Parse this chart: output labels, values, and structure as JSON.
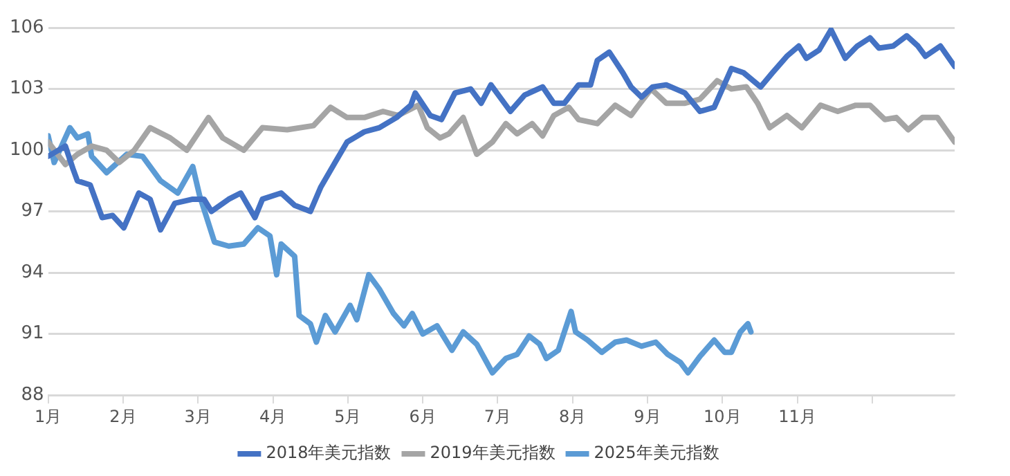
{
  "chart_data": {
    "type": "line",
    "xlim": [
      1,
      13.1
    ],
    "xticks": [
      {
        "value": 1,
        "label": "1月"
      },
      {
        "value": 2,
        "label": "2月"
      },
      {
        "value": 3,
        "label": "3月"
      },
      {
        "value": 4,
        "label": "4月"
      },
      {
        "value": 5,
        "label": "5月"
      },
      {
        "value": 6,
        "label": "6月"
      },
      {
        "value": 7,
        "label": "7月"
      },
      {
        "value": 8,
        "label": "8月"
      },
      {
        "value": 9,
        "label": "9月"
      },
      {
        "value": 10,
        "label": "10月"
      },
      {
        "value": 11,
        "label": "11月"
      },
      {
        "value": 12,
        "label": null
      }
    ],
    "ylim": [
      88,
      106
    ],
    "yticks": [
      88,
      91,
      94,
      97,
      100,
      103,
      106
    ],
    "grid": "y",
    "legend": "bottom",
    "marker": "none",
    "line_style": "solid",
    "series": [
      {
        "name": "2018年美元指数",
        "color": "#4472c4",
        "x": [
          1.0,
          1.23,
          1.33,
          1.39,
          1.56,
          1.72,
          1.86,
          2.01,
          2.21,
          2.36,
          2.5,
          2.69,
          2.93,
          3.08,
          3.18,
          3.41,
          3.57,
          3.76,
          3.86,
          4.11,
          4.29,
          4.5,
          4.64,
          4.83,
          4.99,
          5.22,
          5.42,
          5.65,
          5.84,
          5.9,
          6.1,
          6.25,
          6.43,
          6.64,
          6.78,
          6.91,
          7.17,
          7.36,
          7.6,
          7.75,
          7.89,
          8.08,
          8.24,
          8.33,
          8.49,
          8.67,
          8.78,
          8.92,
          9.07,
          9.25,
          9.5,
          9.7,
          9.89,
          10.12,
          10.28,
          10.51,
          10.67,
          10.86,
          11.02,
          11.12,
          11.29,
          11.45,
          11.64,
          11.8,
          11.97,
          12.09,
          12.28,
          12.46,
          12.61,
          12.71,
          12.91,
          13.1
        ],
        "values": [
          99.7,
          100.2,
          99.1,
          98.5,
          98.3,
          96.7,
          96.8,
          96.2,
          97.9,
          97.6,
          96.1,
          97.4,
          97.6,
          97.6,
          97.0,
          97.6,
          97.9,
          96.7,
          97.6,
          97.9,
          97.3,
          97.0,
          98.2,
          99.4,
          100.4,
          100.9,
          101.1,
          101.6,
          102.2,
          102.8,
          101.7,
          101.5,
          102.8,
          103.0,
          102.3,
          103.2,
          101.9,
          102.7,
          103.1,
          102.3,
          102.3,
          103.2,
          103.2,
          104.4,
          104.8,
          103.8,
          103.1,
          102.6,
          103.1,
          103.2,
          102.8,
          101.9,
          102.1,
          104.0,
          103.8,
          103.1,
          103.8,
          104.6,
          105.1,
          104.5,
          104.9,
          105.9,
          104.5,
          105.1,
          105.5,
          105.0,
          105.1,
          105.6,
          105.1,
          104.6,
          105.1,
          104.1
        ]
      },
      {
        "name": "2019年美元指数",
        "color": "#a5a5a5",
        "x": [
          1.0,
          1.23,
          1.39,
          1.58,
          1.78,
          1.95,
          2.15,
          2.36,
          2.63,
          2.85,
          3.14,
          3.33,
          3.61,
          3.86,
          4.19,
          4.54,
          4.77,
          4.99,
          5.22,
          5.47,
          5.67,
          5.94,
          6.06,
          6.23,
          6.35,
          6.54,
          6.72,
          6.93,
          7.11,
          7.26,
          7.46,
          7.6,
          7.75,
          7.95,
          8.08,
          8.33,
          8.57,
          8.78,
          8.86,
          9.05,
          9.25,
          9.5,
          9.7,
          9.93,
          10.12,
          10.32,
          10.47,
          10.63,
          10.86,
          11.06,
          11.31,
          11.54,
          11.78,
          11.97,
          12.17,
          12.32,
          12.48,
          12.67,
          12.87,
          13.1
        ],
        "values": [
          100.4,
          99.3,
          99.8,
          100.2,
          100.0,
          99.4,
          100.0,
          101.1,
          100.6,
          100.0,
          101.6,
          100.6,
          100.0,
          101.1,
          101.0,
          101.2,
          102.1,
          101.6,
          101.6,
          101.9,
          101.7,
          102.2,
          101.1,
          100.6,
          100.8,
          101.6,
          99.8,
          100.4,
          101.3,
          100.8,
          101.3,
          100.7,
          101.7,
          102.1,
          101.5,
          101.3,
          102.2,
          101.7,
          102.1,
          103.0,
          102.3,
          102.3,
          102.5,
          103.4,
          103.0,
          103.1,
          102.3,
          101.1,
          101.7,
          101.1,
          102.2,
          101.9,
          102.2,
          102.2,
          101.5,
          101.6,
          101.0,
          101.6,
          101.6,
          100.4
        ]
      },
      {
        "name": "2025年美元指数",
        "color": "#5b9bd5",
        "x": [
          1.0,
          1.08,
          1.29,
          1.39,
          1.53,
          1.58,
          1.78,
          2.05,
          2.26,
          2.5,
          2.73,
          2.93,
          3.02,
          3.22,
          3.41,
          3.61,
          3.8,
          3.96,
          4.05,
          4.11,
          4.29,
          4.35,
          4.5,
          4.58,
          4.7,
          4.83,
          5.03,
          5.12,
          5.28,
          5.42,
          5.61,
          5.75,
          5.86,
          6.0,
          6.19,
          6.39,
          6.54,
          6.72,
          6.93,
          7.11,
          7.26,
          7.42,
          7.56,
          7.65,
          7.81,
          7.98,
          8.04,
          8.2,
          8.39,
          8.57,
          8.72,
          8.92,
          9.11,
          9.27,
          9.44,
          9.54,
          9.7,
          9.89,
          10.03,
          10.12,
          10.24,
          10.34,
          10.38
        ],
        "values": [
          100.7,
          99.4,
          101.1,
          100.6,
          100.8,
          99.7,
          98.9,
          99.8,
          99.7,
          98.5,
          97.9,
          99.2,
          97.8,
          95.5,
          95.3,
          95.4,
          96.2,
          95.8,
          93.9,
          95.4,
          94.8,
          91.9,
          91.5,
          90.6,
          91.9,
          91.1,
          92.4,
          91.7,
          93.9,
          93.2,
          92.0,
          91.4,
          92.0,
          91.0,
          91.4,
          90.2,
          91.1,
          90.5,
          89.1,
          89.8,
          90.0,
          90.9,
          90.5,
          89.8,
          90.2,
          92.1,
          91.1,
          90.7,
          90.1,
          90.6,
          90.7,
          90.4,
          90.6,
          90.0,
          89.6,
          89.1,
          89.9,
          90.7,
          90.1,
          90.1,
          91.1,
          91.5,
          91.1
        ]
      }
    ]
  }
}
